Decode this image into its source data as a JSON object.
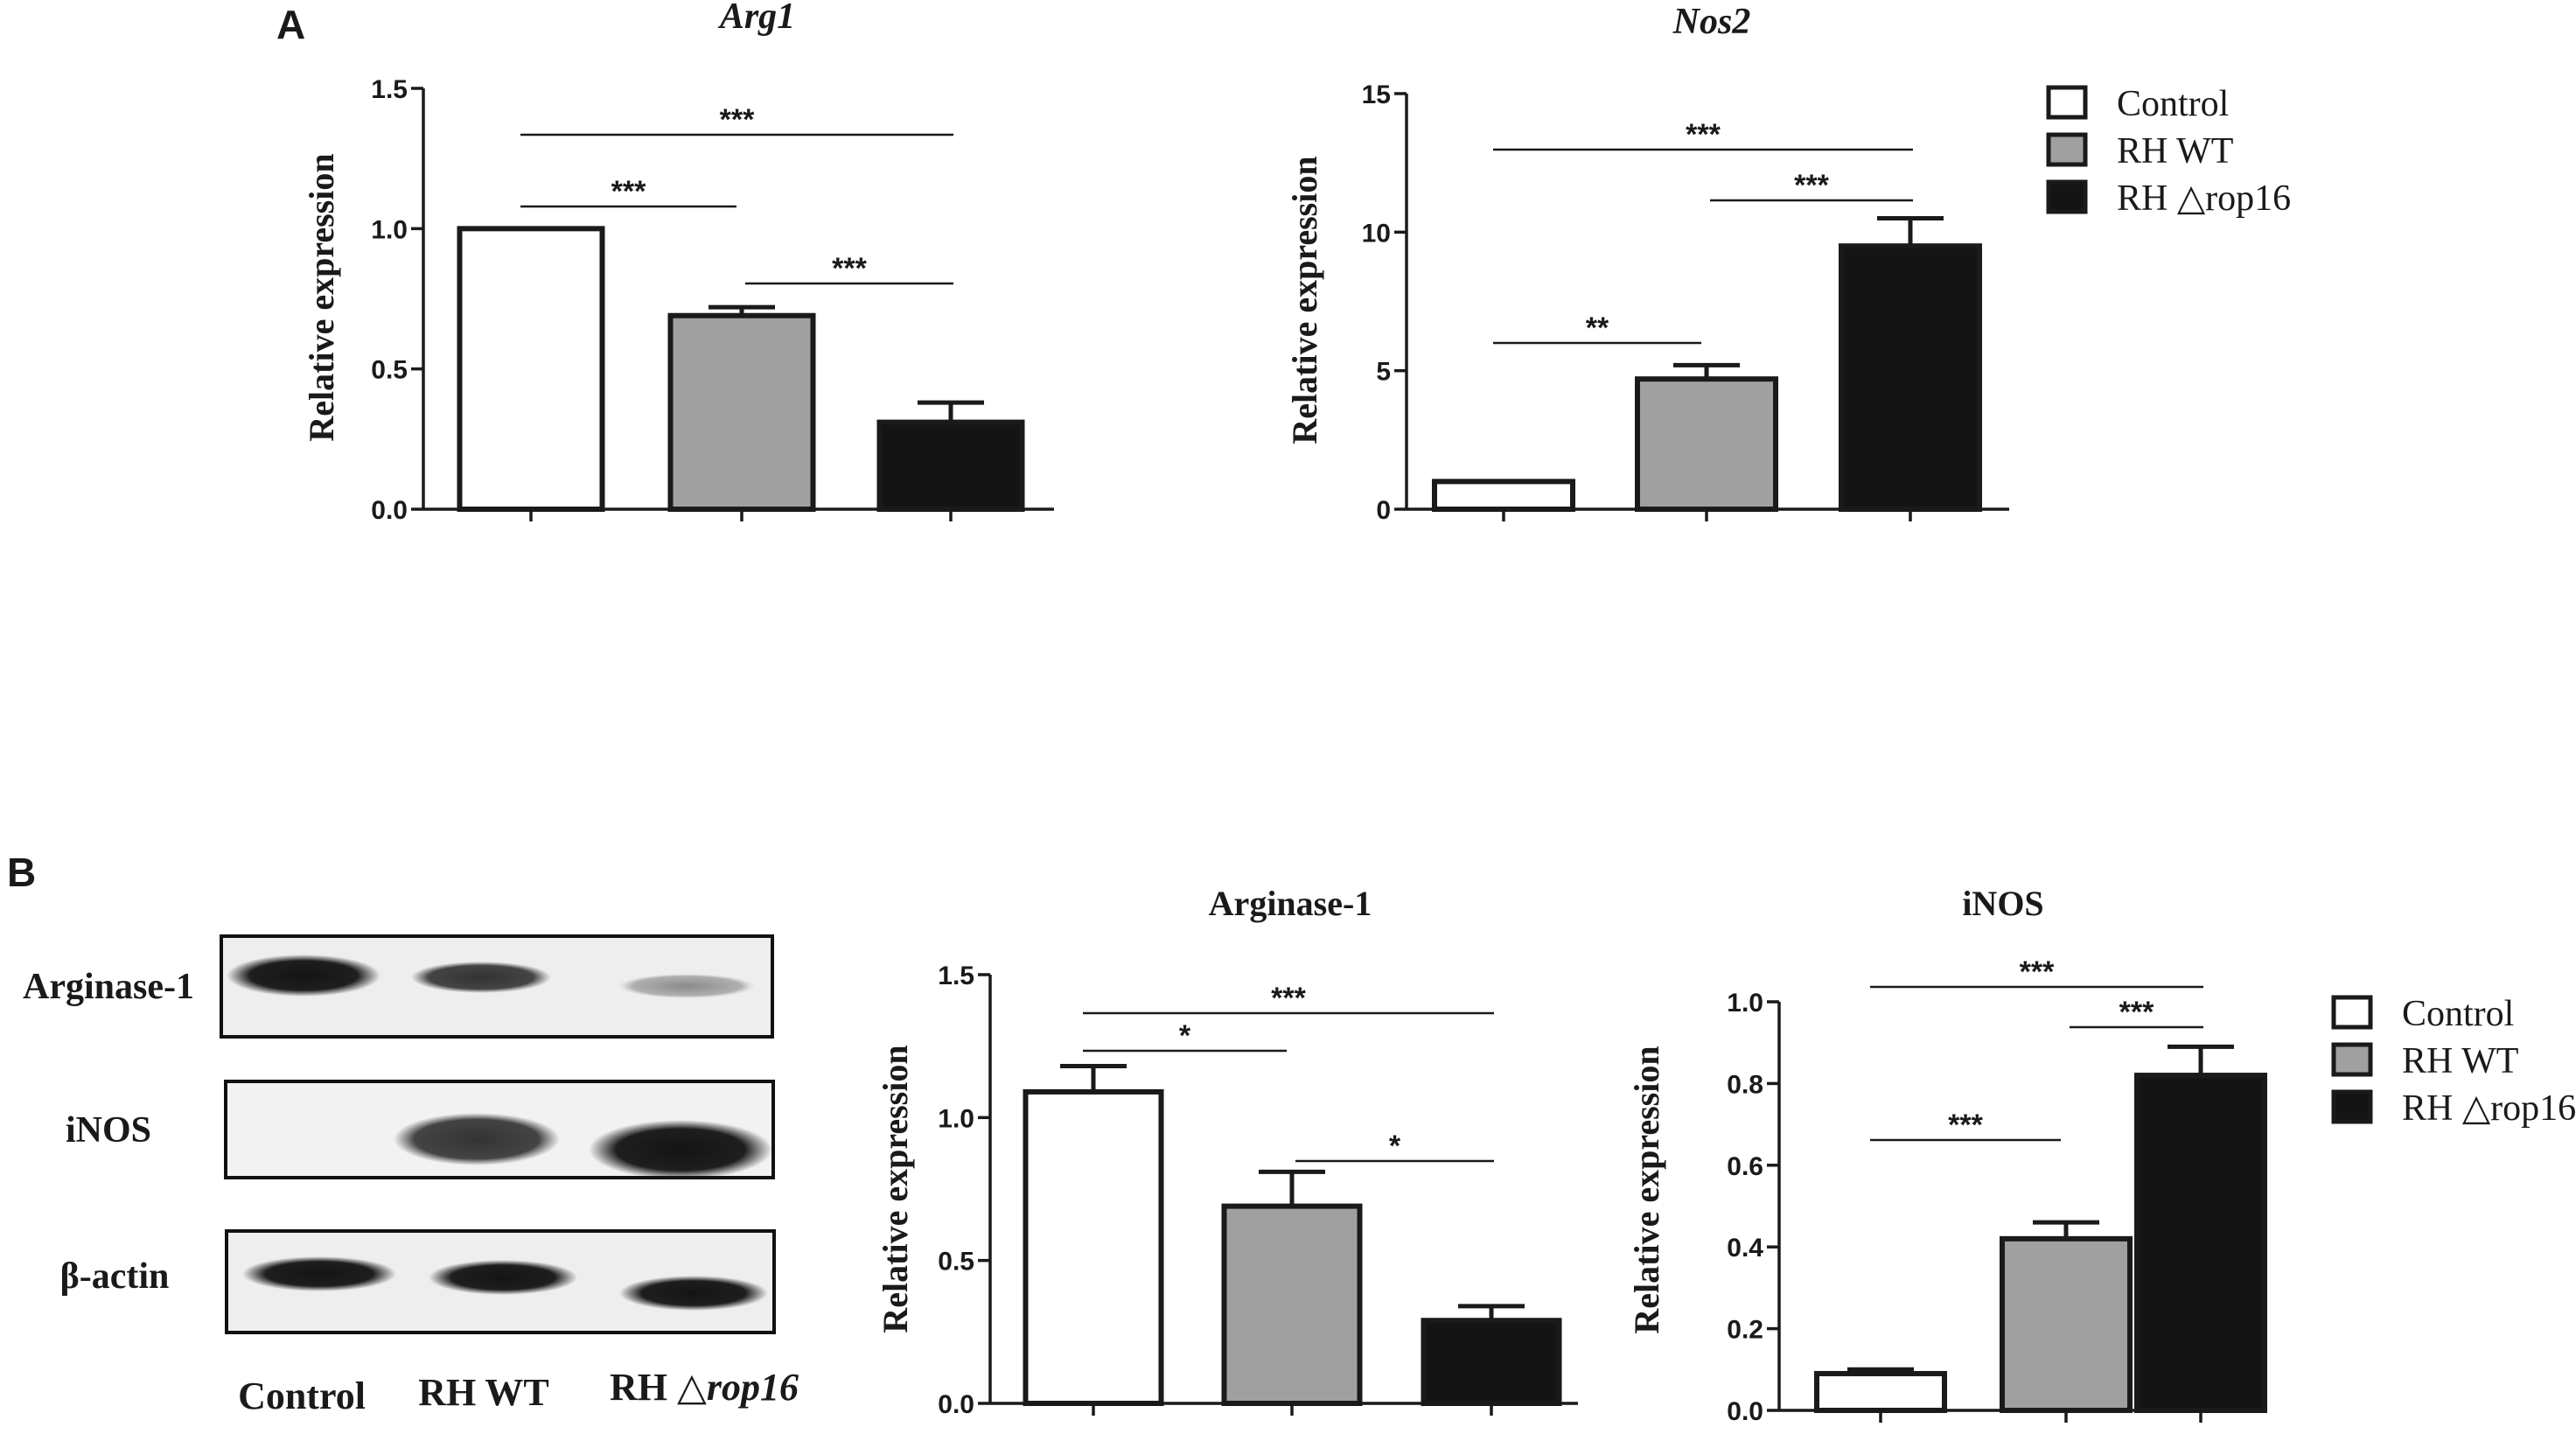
{
  "panels": {
    "a": "A",
    "b": "B"
  },
  "colors": {
    "control": "#ffffff",
    "rh_wt": "#a0a0a0",
    "rh_rop16": "#141414"
  },
  "legend": {
    "items": [
      {
        "label": "Control",
        "color": "#ffffff"
      },
      {
        "label": "RH WT",
        "color": "#a0a0a0"
      },
      {
        "label": "RH △rop16",
        "color": "#141414"
      }
    ]
  },
  "blot": {
    "rows": [
      "Arginase-1",
      "iNOS",
      "β-actin"
    ],
    "lanes": {
      "control": "Control",
      "wt": "RH WT",
      "rop_prefix": "RH △",
      "rop_suffix": "rop16"
    }
  },
  "chart_data": [
    {
      "type": "bar",
      "title": "Arg1",
      "ylabel": "Relative expression",
      "ylim": [
        0,
        1.5
      ],
      "yticks": [
        "0.0",
        "0.5",
        "1.0",
        "1.5"
      ],
      "categories": [
        "Control",
        "RH WT",
        "RH △rop16"
      ],
      "values": [
        1.0,
        0.69,
        0.31
      ],
      "errors": [
        0,
        0.03,
        0.07
      ],
      "significance": [
        {
          "from": 0,
          "to": 2,
          "label": "***"
        },
        {
          "from": 0,
          "to": 1,
          "label": "***"
        },
        {
          "from": 1,
          "to": 2,
          "label": "***"
        }
      ]
    },
    {
      "type": "bar",
      "title": "Nos2",
      "ylabel": "Relative expression",
      "ylim": [
        0,
        15
      ],
      "yticks": [
        "0",
        "5",
        "10",
        "15"
      ],
      "categories": [
        "Control",
        "RH WT",
        "RH △rop16"
      ],
      "values": [
        1.0,
        4.7,
        9.5
      ],
      "errors": [
        0,
        0.5,
        1.0
      ],
      "significance": [
        {
          "from": 0,
          "to": 2,
          "label": "***"
        },
        {
          "from": 1,
          "to": 2,
          "label": "***"
        },
        {
          "from": 0,
          "to": 1,
          "label": "**"
        }
      ]
    },
    {
      "type": "bar",
      "title": "Arginase-1",
      "ylabel": "Relative expression",
      "ylim": [
        0,
        1.5
      ],
      "yticks": [
        "0.0",
        "0.5",
        "1.0",
        "1.5"
      ],
      "categories": [
        "Control",
        "RH WT",
        "RH △rop16"
      ],
      "values": [
        1.09,
        0.69,
        0.29
      ],
      "errors": [
        0.09,
        0.12,
        0.05
      ],
      "significance": [
        {
          "from": 0,
          "to": 2,
          "label": "***"
        },
        {
          "from": 0,
          "to": 1,
          "label": "*"
        },
        {
          "from": 1,
          "to": 2,
          "label": "*"
        }
      ]
    },
    {
      "type": "bar",
      "title": "iNOS",
      "ylabel": "Relative expression",
      "ylim": [
        0,
        1.0
      ],
      "yticks": [
        "0.0",
        "0.2",
        "0.4",
        "0.6",
        "0.8",
        "1.0"
      ],
      "categories": [
        "Control",
        "RH WT",
        "RH △rop16"
      ],
      "values": [
        0.09,
        0.42,
        0.82
      ],
      "errors": [
        0.01,
        0.04,
        0.07
      ],
      "significance": [
        {
          "from": 0,
          "to": 2,
          "label": "***"
        },
        {
          "from": 1,
          "to": 2,
          "label": "***"
        },
        {
          "from": 0,
          "to": 1,
          "label": "***"
        }
      ]
    }
  ]
}
